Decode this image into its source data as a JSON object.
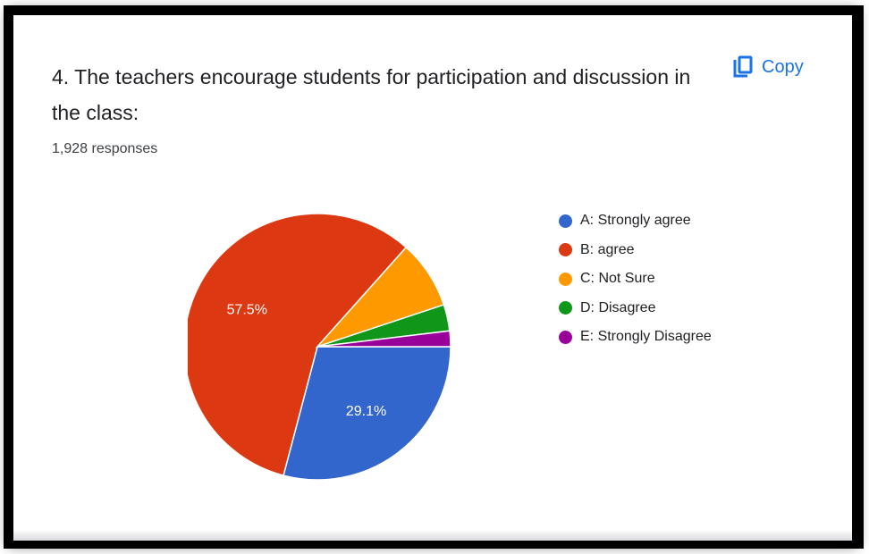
{
  "question": {
    "title": "4. The teachers encourage students for participation and discussion in the class:",
    "responses": "1,928 responses"
  },
  "toolbar": {
    "copy_label": "Copy",
    "copy_icon": "copy-icon"
  },
  "chart_data": {
    "type": "pie",
    "categories": [
      "A: Strongly agree",
      "B: agree",
      "C: Not Sure",
      "D: Disagree",
      "E: Strongly Disagree"
    ],
    "values": [
      29.1,
      57.5,
      8.3,
      3.2,
      1.9
    ],
    "colors": [
      "#3366cc",
      "#dc3912",
      "#ff9900",
      "#109618",
      "#990099"
    ],
    "slice_labels": [
      "29.1%",
      "57.5%",
      "",
      "",
      ""
    ],
    "legend_position": "right"
  }
}
